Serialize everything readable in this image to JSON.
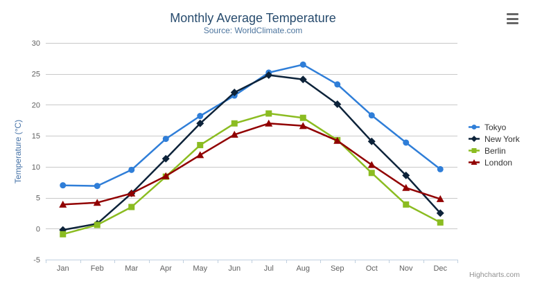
{
  "chart": {
    "title": "Monthly Average Temperature",
    "subtitle": "Source: WorldClimate.com",
    "credits": "Highcharts.com"
  },
  "chart_data": {
    "type": "line",
    "title": "Monthly Average Temperature",
    "subtitle": "Source: WorldClimate.com",
    "categories": [
      "Jan",
      "Feb",
      "Mar",
      "Apr",
      "May",
      "Jun",
      "Jul",
      "Aug",
      "Sep",
      "Oct",
      "Nov",
      "Dec"
    ],
    "series": [
      {
        "name": "Tokyo",
        "color": "#2f7ed8",
        "marker": "circle",
        "values": [
          7.0,
          6.9,
          9.5,
          14.5,
          18.2,
          21.5,
          25.2,
          26.5,
          23.3,
          18.3,
          13.9,
          9.6
        ]
      },
      {
        "name": "New York",
        "color": "#0d233a",
        "marker": "diamond",
        "values": [
          -0.2,
          0.8,
          5.7,
          11.3,
          17.0,
          22.0,
          24.8,
          24.1,
          20.1,
          14.1,
          8.6,
          2.5
        ]
      },
      {
        "name": "Berlin",
        "color": "#8bbc21",
        "marker": "square",
        "values": [
          -0.9,
          0.6,
          3.5,
          8.4,
          13.5,
          17.0,
          18.6,
          17.9,
          14.3,
          9.0,
          3.9,
          1.0
        ]
      },
      {
        "name": "London",
        "color": "#910000",
        "marker": "triangle",
        "values": [
          3.9,
          4.2,
          5.7,
          8.5,
          11.9,
          15.2,
          17.0,
          16.6,
          14.2,
          10.3,
          6.6,
          4.8
        ]
      }
    ],
    "xlabel": "",
    "ylabel": "Temperature (°C)",
    "ylim": [
      -5,
      30
    ],
    "yticks": [
      30,
      25,
      20,
      15,
      10,
      5,
      0,
      -5
    ],
    "grid": true,
    "legend_position": "right"
  },
  "theme": {
    "title_color": "#274b6d",
    "subtitle_color": "#4d759e",
    "axis_title_color": "#4572a7",
    "tick_label_color": "#606060",
    "gridline_color": "#c8c8c8",
    "axis_line_color": "#c0d0e0",
    "legend_text_color": "#333333",
    "credits_color": "#909090",
    "menu_icon_color": "#666666",
    "background": "#ffffff"
  }
}
